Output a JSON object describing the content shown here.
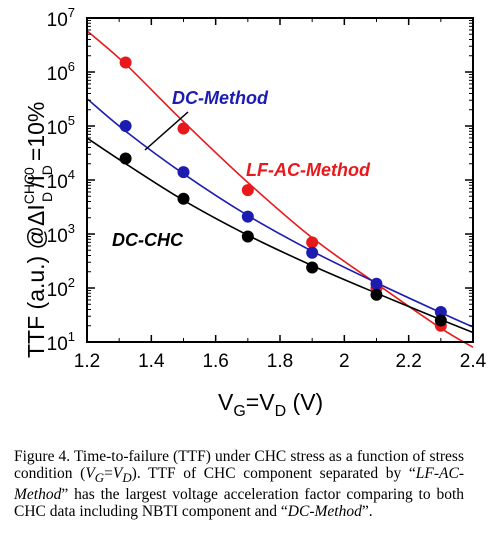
{
  "chart_data": {
    "type": "scatter",
    "ylabel": "TTF (a.u.) @ΔI",
    "ylabel_sup": "CHC",
    "ylabel_sub": "D",
    "ylabel_mid": "/I",
    "ylabel_sup2": "0",
    "ylabel_sub2": "D",
    "ylabel_tail": "=10%",
    "xlabel": "V",
    "xlabel_sub1": "G",
    "xlabel_mid": "=V",
    "xlabel_sub2": "D",
    "xlabel_tail": " (V)",
    "xlim": [
      1.2,
      2.4
    ],
    "ylim": [
      10,
      10000000
    ],
    "y_scale": "log",
    "x_ticks": [
      "1.2",
      "1.4",
      "1.6",
      "1.8",
      "2",
      "2.2",
      "2.4"
    ],
    "y_ticks": [
      {
        "base": "10",
        "exp": "1"
      },
      {
        "base": "10",
        "exp": "2"
      },
      {
        "base": "10",
        "exp": "3"
      },
      {
        "base": "10",
        "exp": "4"
      },
      {
        "base": "10",
        "exp": "5"
      },
      {
        "base": "10",
        "exp": "6"
      },
      {
        "base": "10",
        "exp": "7"
      }
    ],
    "series": [
      {
        "name": "LF-AC-Method",
        "color": "#e8191c",
        "x": [
          1.32,
          1.5,
          1.7,
          1.9,
          2.1,
          2.3
        ],
        "y": [
          1500000,
          90000,
          6500,
          700,
          100,
          20
        ],
        "fit_x": [
          1.2,
          1.32,
          1.5,
          1.7,
          1.9,
          2.1,
          2.3,
          2.4
        ],
        "fit_y": [
          5800000,
          1400000,
          120000,
          9000,
          850,
          120,
          18,
          8
        ]
      },
      {
        "name": "DC-Method",
        "color": "#1c1cb0",
        "x": [
          1.32,
          1.5,
          1.7,
          1.9,
          2.1,
          2.3
        ],
        "y": [
          100000,
          14000,
          2100,
          450,
          120,
          36
        ],
        "fit_x": [
          1.2,
          1.32,
          1.5,
          1.7,
          1.9,
          2.1,
          2.3,
          2.4
        ],
        "fit_y": [
          320000,
          80000,
          13000,
          2200,
          480,
          125,
          35,
          19
        ]
      },
      {
        "name": "DC-CHC",
        "color": "#000000",
        "x": [
          1.32,
          1.5,
          1.7,
          1.9,
          2.1,
          2.3
        ],
        "y": [
          25000,
          4500,
          900,
          240,
          75,
          25
        ],
        "fit_x": [
          1.2,
          1.32,
          1.5,
          1.7,
          1.9,
          2.1,
          2.3,
          2.4
        ],
        "fit_y": [
          60000,
          20000,
          4200,
          950,
          260,
          80,
          26,
          15
        ]
      }
    ]
  },
  "caption": {
    "p1": "Figure 4. Time-to-failure (TTF) under CHC stress as a function of stress condition (",
    "vg": "V",
    "vg_sub": "G",
    "eq": "=",
    "vd": "V",
    "vd_sub": "D",
    "p2": "). TTF of CHC component separated by “",
    "lfac": "LF-AC-Method",
    "p3": "” has the largest voltage acceleration factor comparing to both CHC data including NBTI component and “",
    "dcm": "DC-Method",
    "p4": "”."
  }
}
